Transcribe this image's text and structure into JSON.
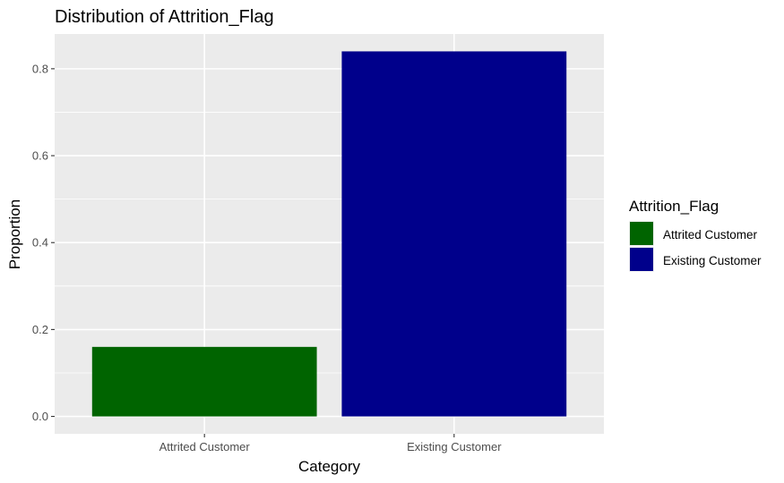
{
  "chart_data": {
    "type": "bar",
    "title": "Distribution of Attrition_Flag",
    "xlabel": "Category",
    "ylabel": "Proportion",
    "categories": [
      "Attrited Customer",
      "Existing Customer"
    ],
    "values": [
      0.16,
      0.84
    ],
    "ylim": [
      -0.04,
      0.88
    ],
    "yticks": [
      0.0,
      0.2,
      0.4,
      0.6,
      0.8
    ],
    "ytick_labels": [
      "0.0",
      "0.2",
      "0.4",
      "0.6",
      "0.8"
    ],
    "grid": true,
    "panel_background": "#ebebeb",
    "legend": {
      "title": "Attrition_Flag",
      "placement": "right",
      "entries": [
        {
          "label": "Attrited Customer",
          "color": "#006400"
        },
        {
          "label": "Existing Customer",
          "color": "#00008b"
        }
      ]
    },
    "bar_colors": [
      "#006400",
      "#00008b"
    ]
  }
}
